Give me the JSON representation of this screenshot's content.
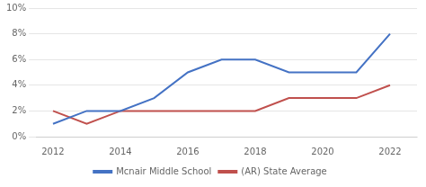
{
  "chart_data": {
    "type": "line",
    "x": [
      2012,
      2013,
      2014,
      2015,
      2016,
      2017,
      2018,
      2019,
      2020,
      2021,
      2022
    ],
    "series": [
      {
        "name": "Mcnair Middle School",
        "color": "#4472C4",
        "values": [
          1.0,
          2.0,
          2.0,
          3.0,
          5.0,
          6.0,
          6.0,
          5.0,
          5.0,
          5.0,
          8.0
        ]
      },
      {
        "name": "(AR) State Average",
        "color": "#C0504D",
        "values": [
          2.0,
          1.0,
          2.0,
          2.0,
          2.0,
          2.0,
          2.0,
          3.0,
          3.0,
          3.0,
          4.0
        ]
      }
    ],
    "xlim": [
      2011.5,
      2022.8
    ],
    "xticks": [
      2012,
      2014,
      2016,
      2018,
      2020,
      2022
    ],
    "ylim": [
      0,
      10
    ],
    "yticks": [
      {
        "value": 0,
        "label": "0%"
      },
      {
        "value": 2,
        "label": "2%"
      },
      {
        "value": 4,
        "label": "4%"
      },
      {
        "value": 6,
        "label": "6%"
      },
      {
        "value": 8,
        "label": "8%"
      },
      {
        "value": 10,
        "label": "10%"
      }
    ],
    "grid": "y",
    "legend": "bottom"
  }
}
